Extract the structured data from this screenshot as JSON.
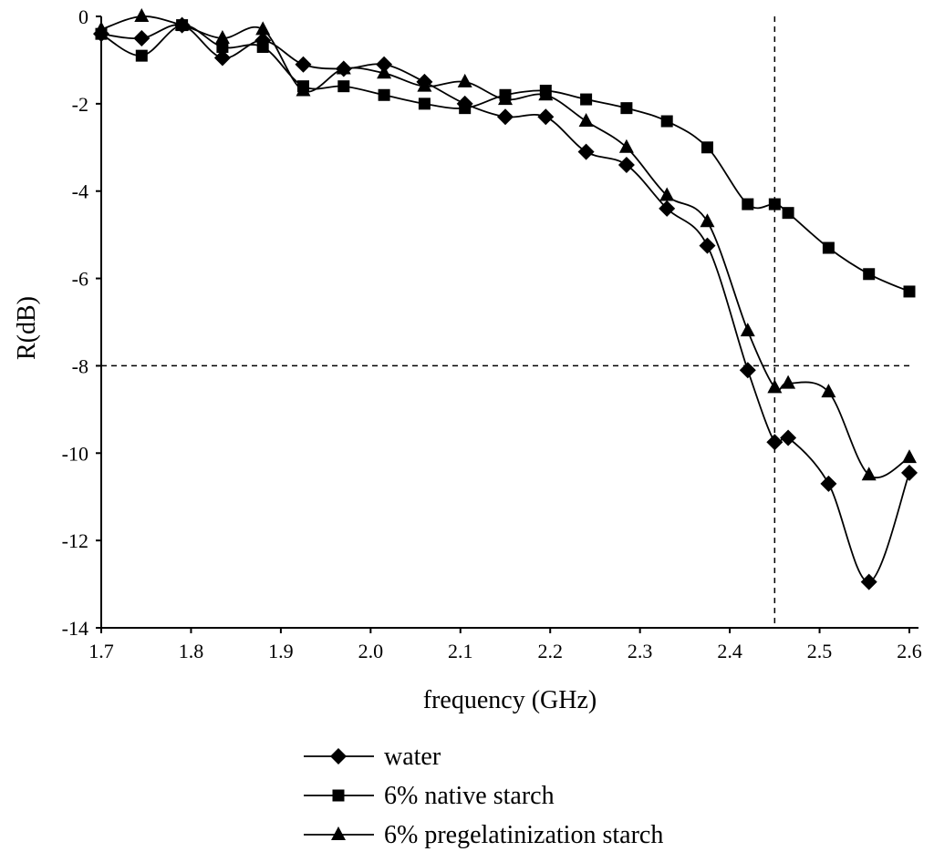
{
  "chart_data": {
    "type": "line",
    "title": "",
    "xlabel": "frequency (GHz)",
    "ylabel": "R(dB)",
    "xlim": [
      1.7,
      2.6
    ],
    "ylim": [
      -14,
      0
    ],
    "x_ticks": [
      "1.7",
      "1.8",
      "1.9",
      "2.0",
      "2.1",
      "2.2",
      "2.3",
      "2.4",
      "2.5",
      "2.6"
    ],
    "y_ticks": [
      "0",
      "-2",
      "-4",
      "-6",
      "-8",
      "-10",
      "-12",
      "-14"
    ],
    "reference_lines": {
      "x": 2.45,
      "y": -8
    },
    "grid": false,
    "legend_position": "bottom",
    "series": [
      {
        "name": "water",
        "marker": "diamond",
        "x": [
          1.7,
          1.745,
          1.79,
          1.835,
          1.88,
          1.925,
          1.97,
          2.015,
          2.06,
          2.105,
          2.15,
          2.195,
          2.24,
          2.285,
          2.33,
          2.375,
          2.42,
          2.45,
          2.465,
          2.51,
          2.555,
          2.6
        ],
        "values": [
          -0.4,
          -0.5,
          -0.2,
          -0.95,
          -0.55,
          -1.1,
          -1.2,
          -1.1,
          -1.5,
          -2.0,
          -2.3,
          -2.3,
          -3.1,
          -3.4,
          -4.4,
          -5.25,
          -8.1,
          -9.75,
          -9.65,
          -10.7,
          -12.95,
          -10.45
        ]
      },
      {
        "name": "6% native starch",
        "marker": "square",
        "x": [
          1.7,
          1.745,
          1.79,
          1.835,
          1.88,
          1.925,
          1.97,
          2.015,
          2.06,
          2.105,
          2.15,
          2.195,
          2.24,
          2.285,
          2.33,
          2.375,
          2.42,
          2.45,
          2.465,
          2.51,
          2.555,
          2.6
        ],
        "values": [
          -0.4,
          -0.9,
          -0.2,
          -0.7,
          -0.7,
          -1.6,
          -1.6,
          -1.8,
          -2.0,
          -2.1,
          -1.8,
          -1.7,
          -1.9,
          -2.1,
          -2.4,
          -3.0,
          -4.3,
          -4.3,
          -4.5,
          -5.3,
          -5.9,
          -6.3
        ]
      },
      {
        "name": "6% pregelatinization starch",
        "marker": "triangle",
        "x": [
          1.7,
          1.745,
          1.79,
          1.835,
          1.88,
          1.925,
          1.97,
          2.015,
          2.06,
          2.105,
          2.15,
          2.195,
          2.24,
          2.285,
          2.33,
          2.375,
          2.42,
          2.45,
          2.465,
          2.51,
          2.555,
          2.6
        ],
        "values": [
          -0.3,
          0.0,
          -0.2,
          -0.5,
          -0.3,
          -1.7,
          -1.2,
          -1.3,
          -1.6,
          -1.5,
          -1.9,
          -1.8,
          -2.4,
          -3.0,
          -4.1,
          -4.7,
          -7.2,
          -8.5,
          -8.4,
          -8.6,
          -10.5,
          -10.1
        ]
      }
    ]
  }
}
